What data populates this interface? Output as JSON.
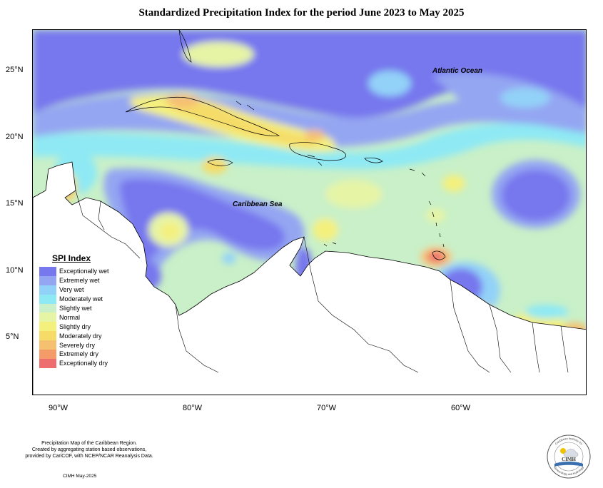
{
  "title": "Standardized Precipitation Index for the period June 2023 to May 2025",
  "map": {
    "ocean_labels": [
      "Atlantic Ocean",
      "Caribbean Sea"
    ],
    "latitude_ticks": [
      "25°N",
      "20°N",
      "15°N",
      "10°N",
      "5°N"
    ],
    "longitude_ticks": [
      "90°W",
      "80°W",
      "70°W",
      "60°W"
    ]
  },
  "legend": {
    "title": "SPI Index",
    "items": [
      {
        "label": "Exceptionally wet",
        "color": "#7777ee"
      },
      {
        "label": "Extremely wet",
        "color": "#94a6f2"
      },
      {
        "label": "Very wet",
        "color": "#93d2f8"
      },
      {
        "label": "Moderately wet",
        "color": "#8ee9f4"
      },
      {
        "label": "Slightly wet",
        "color": "#c9f0c8"
      },
      {
        "label": "Normal",
        "color": "#e6f4a6"
      },
      {
        "label": "Slightly dry",
        "color": "#f4f07e"
      },
      {
        "label": "Moderately dry",
        "color": "#f5dc69"
      },
      {
        "label": "Severely dry",
        "color": "#f6c071"
      },
      {
        "label": "Extremely dry",
        "color": "#f49b6a"
      },
      {
        "label": "Exceptionally dry",
        "color": "#ee6e70"
      }
    ]
  },
  "footer": {
    "note_lines": [
      "Precipitation Map of the Caribbean Region.",
      "Created by aggregating station based observations,",
      "provided by CariCOF, with NCEP/NCAR Reanalysis Data."
    ],
    "credit": "CIMH May-2025"
  },
  "logo": {
    "text": "CIMH",
    "ring_top": "Caribbean Institute for",
    "ring_bottom": "Meteorology and Hydrology"
  }
}
